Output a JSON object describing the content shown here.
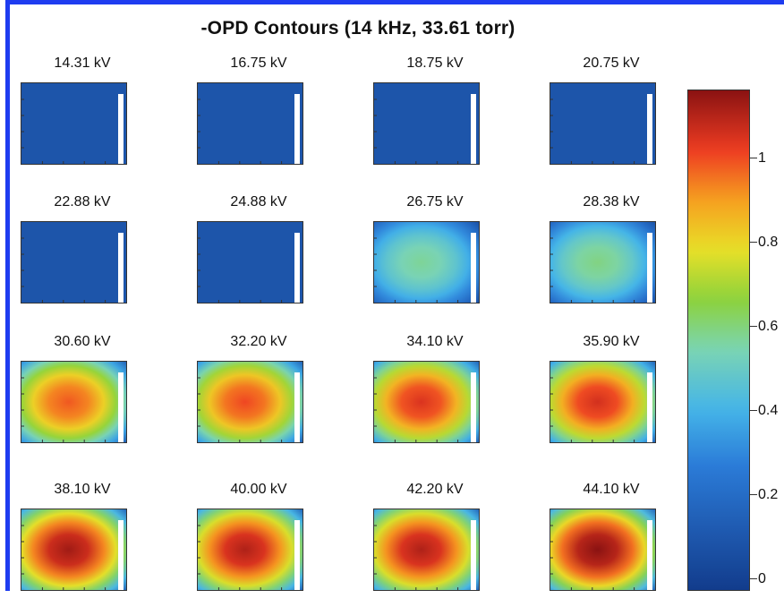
{
  "chart_data": {
    "type": "heatmap",
    "title": "-OPD Contours (14 kHz, 33.61 torr)",
    "panels": [
      {
        "label": "14.31 kV",
        "peak": 0.0
      },
      {
        "label": "16.75 kV",
        "peak": 0.0
      },
      {
        "label": "18.75 kV",
        "peak": 0.0
      },
      {
        "label": "20.75 kV",
        "peak": 0.0
      },
      {
        "label": "22.88 kV",
        "peak": 0.0
      },
      {
        "label": "24.88 kV",
        "peak": 0.0
      },
      {
        "label": "26.75 kV",
        "peak": 0.58
      },
      {
        "label": "28.38 kV",
        "peak": 0.6
      },
      {
        "label": "30.60 kV",
        "peak": 0.98
      },
      {
        "label": "32.20 kV",
        "peak": 1.0
      },
      {
        "label": "34.10 kV",
        "peak": 1.04
      },
      {
        "label": "35.90 kV",
        "peak": 1.05
      },
      {
        "label": "38.10 kV",
        "peak": 1.12
      },
      {
        "label": "40.00 kV",
        "peak": 1.1
      },
      {
        "label": "42.20 kV",
        "peak": 1.1
      },
      {
        "label": "44.10 kV",
        "peak": 1.15
      }
    ],
    "colorbar": {
      "range": [
        0,
        1.15
      ],
      "ticks": [
        "0",
        "0.2",
        "0.4",
        "0.6",
        "0.8",
        "1"
      ]
    }
  }
}
